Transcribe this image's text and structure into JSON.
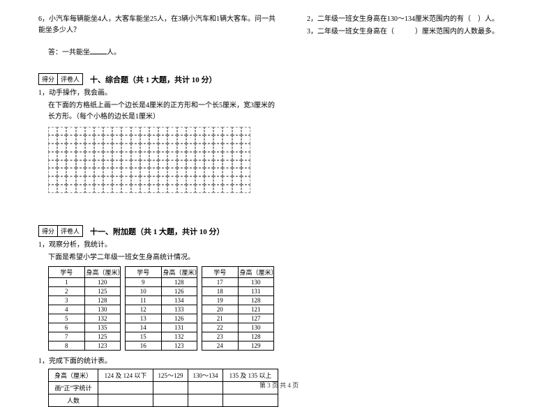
{
  "left": {
    "q6": "6，小汽车每辆能坐4人，大客车能坐25人，在3辆小汽车和1辆大客车。问一共能坐多少人？",
    "answer_prefix": "答：一共能坐",
    "answer_suffix": "人。",
    "score_labels": {
      "score": "得分",
      "reviewer": "评卷人"
    },
    "section10_title": "十、综合题（共 1 大题，共计 10 分）",
    "s10_q1_a": "1，动手操作，我会画。",
    "s10_q1_b": "在下面的方格纸上画一个边长是4厘米的正方形和一个长5厘米，宽3厘米的长方形。（每个小格的边长是1厘米）",
    "section11_title": "十一、附加题（共 1 大题，共计 10 分）",
    "s11_q1_a": "1，观察分析，我统计。",
    "s11_q1_b": "下面是希望小学二年级一班女生身高统计情况。",
    "table_headers": {
      "id": "学号",
      "height": "身高（厘米）"
    },
    "table1": [
      [
        "1",
        "120"
      ],
      [
        "2",
        "125"
      ],
      [
        "3",
        "128"
      ],
      [
        "4",
        "130"
      ],
      [
        "5",
        "132"
      ],
      [
        "6",
        "135"
      ],
      [
        "7",
        "125"
      ],
      [
        "8",
        "123"
      ]
    ],
    "table2": [
      [
        "9",
        "128"
      ],
      [
        "10",
        "126"
      ],
      [
        "11",
        "134"
      ],
      [
        "12",
        "133"
      ],
      [
        "13",
        "126"
      ],
      [
        "14",
        "131"
      ],
      [
        "15",
        "132"
      ],
      [
        "16",
        "123"
      ]
    ],
    "table3": [
      [
        "17",
        "130"
      ],
      [
        "18",
        "131"
      ],
      [
        "19",
        "128"
      ],
      [
        "20",
        "121"
      ],
      [
        "21",
        "127"
      ],
      [
        "22",
        "130"
      ],
      [
        "23",
        "128"
      ],
      [
        "24",
        "129"
      ]
    ],
    "s11_sub1": "1，完成下面的统计表。",
    "summary_headers": [
      "身高（厘米）",
      "124 及 124 以下",
      "125～129",
      "130～134",
      "135 及 135 以上"
    ],
    "summary_row1": "画“正”字统计",
    "summary_row2": "人数"
  },
  "right": {
    "q2_a": "2，二年级一班女生身高在130～134厘米范围内的有（",
    "q2_b": "）人。",
    "q3_a": "3，二年级一班女生身高在（",
    "q3_b": "）厘米范围内的人数最多。"
  },
  "footer": "第 3 页  共 4 页"
}
